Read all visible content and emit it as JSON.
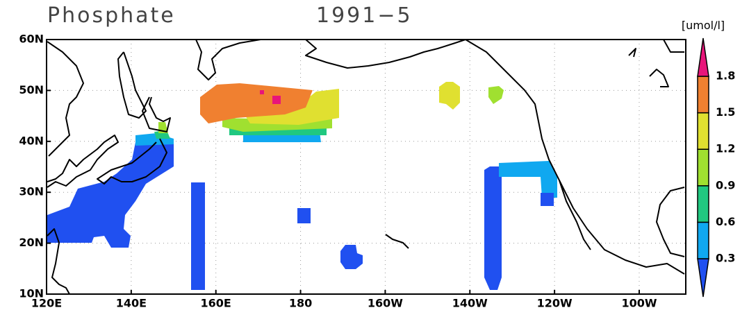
{
  "title": "Phosphate",
  "period": "1991−5",
  "units": "[umol/l]",
  "lat_ticks": [
    {
      "value": 60,
      "label": "60N"
    },
    {
      "value": 50,
      "label": "50N"
    },
    {
      "value": 40,
      "label": "40N"
    },
    {
      "value": 30,
      "label": "30N"
    },
    {
      "value": 20,
      "label": "20N"
    },
    {
      "value": 10,
      "label": "10N"
    }
  ],
  "lon_ticks": [
    {
      "value": 120,
      "label": "120E"
    },
    {
      "value": 140,
      "label": "140E"
    },
    {
      "value": 160,
      "label": "160E"
    },
    {
      "value": 180,
      "label": "180"
    },
    {
      "value": 200,
      "label": "160W"
    },
    {
      "value": 220,
      "label": "140W"
    },
    {
      "value": 240,
      "label": "120W"
    },
    {
      "value": 260,
      "label": "100W"
    }
  ],
  "lat_range": [
    10,
    60
  ],
  "lon_range": [
    120,
    271
  ],
  "colorbar": {
    "levels": [
      0.3,
      0.6,
      0.9,
      1.2,
      1.5,
      1.8
    ],
    "colors": [
      "#2050f0",
      "#10a8f0",
      "#20c880",
      "#a0e030",
      "#e0e030",
      "#f08030",
      "#e8157a"
    ]
  }
}
